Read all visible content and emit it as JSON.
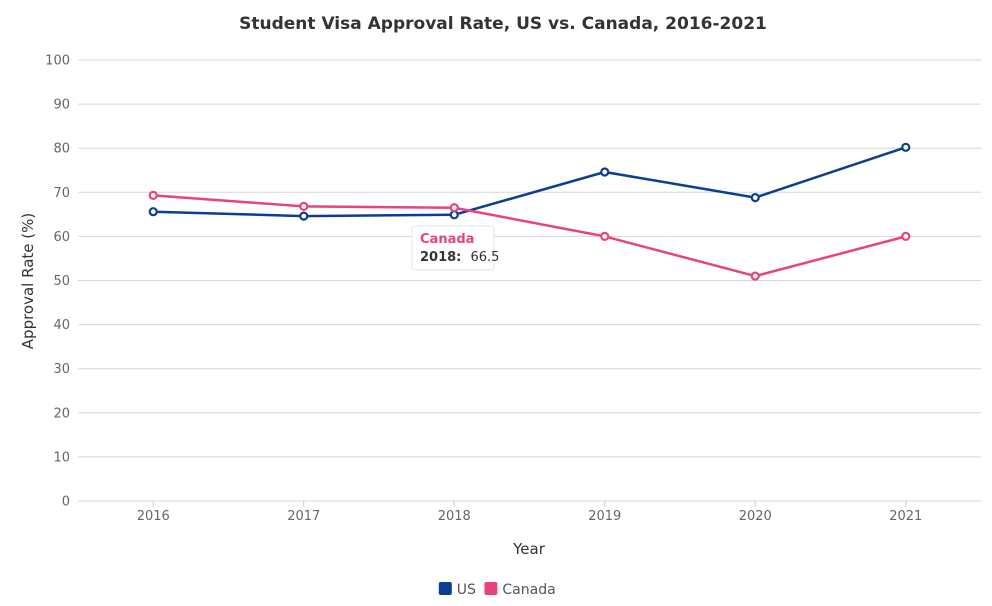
{
  "chart_data": {
    "type": "line",
    "title": "Student Visa Approval Rate, US vs. Canada, 2016-2021",
    "xlabel": "Year",
    "ylabel": "Approval Rate (%)",
    "categories": [
      "2016",
      "2017",
      "2018",
      "2019",
      "2020",
      "2021"
    ],
    "ylim": [
      0,
      100
    ],
    "yticks": [
      "0",
      "10",
      "20",
      "30",
      "40",
      "50",
      "60",
      "70",
      "80",
      "90",
      "100"
    ],
    "grid": true,
    "legend_position": "bottom-center",
    "series": [
      {
        "name": "US",
        "color": "#0b3d91",
        "values": [
          65.6,
          64.6,
          64.9,
          74.6,
          68.8,
          80.2
        ]
      },
      {
        "name": "Canada",
        "color": "#e8437a",
        "values": [
          69.3,
          66.8,
          66.5,
          60.0,
          51.0,
          60.0
        ]
      }
    ],
    "tooltip": {
      "series": "Canada",
      "label": "2018:",
      "value": "66.5",
      "category_index": 2
    }
  }
}
